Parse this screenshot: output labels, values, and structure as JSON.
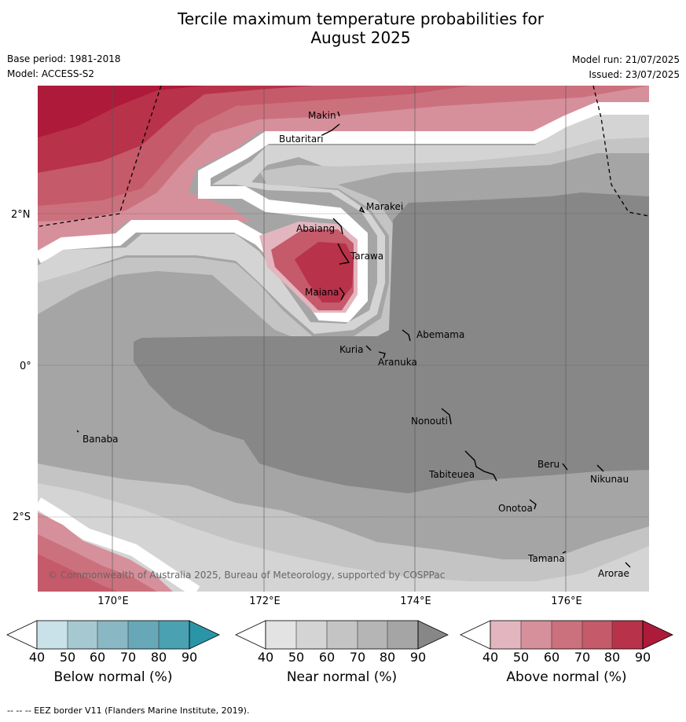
{
  "title_line1": "Tercile maximum temperature probabilities for",
  "title_line2": "August 2025",
  "base_period": "Base period: 1981-2018",
  "model": "Model: ACCESS-S2",
  "model_run": "Model run: 21/07/2025",
  "issued": "Issued: 23/07/2025",
  "copyright": "© Commonwealth of Australia 2025, Bureau of Meteorology, supported by COSPPac",
  "lat_labels": [
    "2°N",
    "0°",
    "2°S"
  ],
  "lon_labels": [
    "170°E",
    "172°E",
    "174°E",
    "176°E"
  ],
  "places": [
    "Makin",
    "Butaritari",
    "Marakei",
    "Abaiang",
    "Tarawa",
    "Maiana",
    "Abemama",
    "Kuria",
    "Aranuka",
    "Banaba",
    "Nonouti",
    "Beru",
    "Nikunau",
    "Tabiteuea",
    "Onotoa",
    "Tamana",
    "Arorae"
  ],
  "colorbars": [
    {
      "label": "Below normal (%)",
      "ticks": [
        "40",
        "50",
        "60",
        "70",
        "80",
        "90"
      ],
      "colors": [
        "#ffffff",
        "#c9e1e8",
        "#a6c8d0",
        "#89b7c4",
        "#67a8b8",
        "#4aa1b2",
        "#2b95a8"
      ]
    },
    {
      "label": "Near normal (%)",
      "ticks": [
        "40",
        "50",
        "60",
        "70",
        "80",
        "90"
      ],
      "colors": [
        "#ffffff",
        "#e3e3e3",
        "#d4d4d4",
        "#c4c4c4",
        "#b5b5b5",
        "#a5a5a5",
        "#878787"
      ]
    },
    {
      "label": "Above normal (%)",
      "ticks": [
        "40",
        "50",
        "60",
        "70",
        "80",
        "90"
      ],
      "colors": [
        "#ffffff",
        "#e3b6bf",
        "#d6909b",
        "#cb717d",
        "#c55a6a",
        "#b8324a",
        "#ae1a3a"
      ]
    }
  ],
  "eez_note": "--  --  -- EEZ border V11 (Flanders Marine Institute, 2019)."
}
